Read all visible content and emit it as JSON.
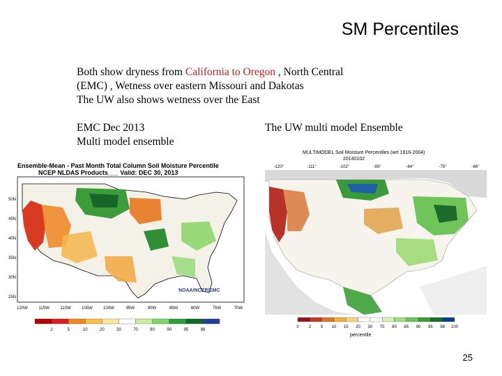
{
  "slide": {
    "title": "SM Percentiles",
    "page_number": "25"
  },
  "body": {
    "line1_pre": "Both show dryness from ",
    "line1_red": "California to Oregon",
    "line1_post": " , North Central",
    "line2": "(EMC) , Wetness over eastern Missouri and Dakotas",
    "line3": "The UW also shows wetness over the East"
  },
  "captions": {
    "left_line1": "EMC Dec 2013",
    "left_line2": "Multi model ensemble",
    "right": "The UW multi model Ensemble"
  },
  "left_map": {
    "header_line1": "Ensemble-Mean - Past Month Total Column Soil Moisture Percentile",
    "header_line2": "NCEP NLDAS Products___ Valid: DEC 30, 2013",
    "credit": "NOAA/NCEP/EMC",
    "lon_ticks": [
      "120W",
      "115W",
      "110W",
      "105W",
      "100W",
      "95W",
      "90W",
      "85W",
      "80W",
      "75W",
      "70W"
    ],
    "lat_ticks": [
      "50N",
      "45N",
      "40N",
      "35N",
      "30N",
      "25N"
    ],
    "legend_ticks": [
      "2",
      "5",
      "10",
      "20",
      "30",
      "70",
      "80",
      "90",
      "95",
      "98"
    ],
    "legend_colors": [
      "#b30000",
      "#e21a1a",
      "#f08a20",
      "#f6c24a",
      "#fbe79a",
      "#ffffff",
      "#c8f0a0",
      "#7fd56a",
      "#2e9e3a",
      "#0f6b25",
      "#1f3f9a"
    ]
  },
  "right_map": {
    "header_line1": "MULTIMODEL Soil Moisture Percentiles (wrt 1916-2004)",
    "header_line2": "20140102",
    "lon_ticks": [
      "-120°",
      "-111°",
      "-102°",
      "-93°",
      "-84°",
      "-75°",
      "-66°"
    ],
    "legend_ticks": [
      "0",
      "2",
      "5",
      "10",
      "15",
      "20",
      "30",
      "70",
      "80",
      "85",
      "90",
      "95",
      "98",
      "100"
    ],
    "legend_label": "percentile",
    "legend_colors": [
      "#8b1a1a",
      "#c23a2a",
      "#e0782a",
      "#f0b040",
      "#f5d680",
      "#ffffff",
      "#ffffff",
      "#d6f0b0",
      "#a6dd80",
      "#6fc45a",
      "#3b9e3a",
      "#1d6b2a",
      "#0b3f8c"
    ]
  },
  "colors": {
    "accent_red": "#c0201e"
  }
}
